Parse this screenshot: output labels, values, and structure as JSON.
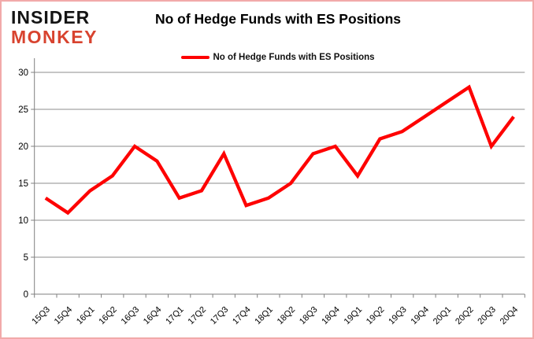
{
  "logo": {
    "line1": "INSIDER",
    "line2": "MONKEY"
  },
  "header": {
    "title": "No of Hedge Funds with ES Positions"
  },
  "legend": {
    "label": "No of Hedge Funds with ES Positions"
  },
  "colors": {
    "line": "#fe0000",
    "grid": "#8c8c8c",
    "axis": "#7f7f7f",
    "tick_label": "#000000",
    "border": "#f2aaaa",
    "logo_black": "#141414",
    "logo_red": "#d8432f"
  },
  "chart_data": {
    "type": "line",
    "title": "No of Hedge Funds with ES Positions",
    "categories": [
      "15Q3",
      "15Q4",
      "16Q1",
      "16Q2",
      "16Q3",
      "16Q4",
      "17Q1",
      "17Q2",
      "17Q3",
      "17Q4",
      "18Q1",
      "18Q2",
      "18Q3",
      "18Q4",
      "19Q1",
      "19Q2",
      "19Q3",
      "19Q4",
      "20Q1",
      "20Q2",
      "20Q3",
      "20Q4"
    ],
    "series": [
      {
        "name": "No of Hedge Funds with ES Positions",
        "color": "#fe0000",
        "values": [
          13,
          11,
          14,
          16,
          20,
          18,
          13,
          14,
          19,
          12,
          13,
          15,
          19,
          20,
          16,
          21,
          22,
          24,
          26,
          28,
          20,
          24
        ]
      }
    ],
    "xlabel": "",
    "ylabel": "",
    "ylim": [
      0,
      30
    ],
    "yticks": [
      0,
      5,
      10,
      15,
      20,
      25,
      30
    ],
    "grid": true,
    "legend_position": "top"
  }
}
